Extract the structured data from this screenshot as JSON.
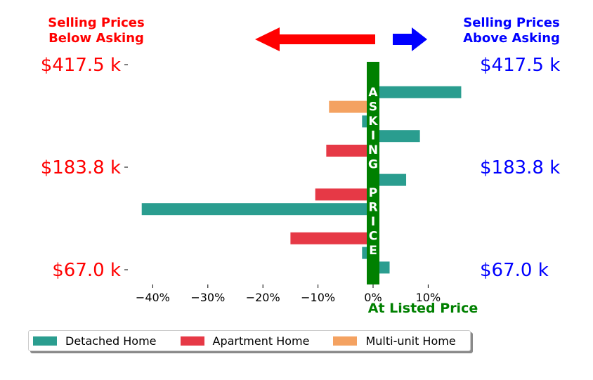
{
  "header": {
    "left_title_line1": "Selling Prices",
    "left_title_line2": "Below Asking",
    "right_title_line1": "Selling Prices",
    "right_title_line2": "Above Asking"
  },
  "center_label": "ASKING PRICE",
  "bottom_label": "At Listed Price",
  "colors": {
    "detached": "#2a9d8f",
    "apartment": "#e63946",
    "multi_unit": "#f4a261",
    "below": "#ff0000",
    "above": "#0000ff",
    "asking": "#008000"
  },
  "chart_data": {
    "type": "bar",
    "orientation": "horizontal",
    "xlabel": "",
    "ylabel": "",
    "xlim": [
      -45,
      17
    ],
    "x_ticks": [
      -40,
      -30,
      -20,
      -10,
      0,
      10
    ],
    "x_tick_labels": [
      "−40%",
      "−30%",
      "−20%",
      "−10%",
      "0%",
      "10%"
    ],
    "price_labels": [
      "$417.5 k",
      "$183.8 k",
      "$67.0 k"
    ],
    "series": [
      {
        "name": "Detached Home",
        "color_key": "detached"
      },
      {
        "name": "Apartment Home",
        "color_key": "apartment"
      },
      {
        "name": "Multi-unit Home",
        "color_key": "multi_unit"
      }
    ],
    "bars": [
      {
        "series": 0,
        "value": 1.0
      },
      {
        "series": 0,
        "value": 16.0
      },
      {
        "series": 2,
        "value": -8.0
      },
      {
        "series": 0,
        "value": -2.0
      },
      {
        "series": 0,
        "value": 8.5
      },
      {
        "series": 1,
        "value": -8.5
      },
      {
        "series": 0,
        "value": 1.0
      },
      {
        "series": 0,
        "value": 6.0
      },
      {
        "series": 1,
        "value": -10.5
      },
      {
        "series": 0,
        "value": -42.0
      },
      {
        "series": 0,
        "value": 1.0
      },
      {
        "series": 1,
        "value": -15.0
      },
      {
        "series": 0,
        "value": -2.0
      },
      {
        "series": 0,
        "value": 3.0
      }
    ],
    "legend_position": "bottom-left",
    "grid": false
  }
}
